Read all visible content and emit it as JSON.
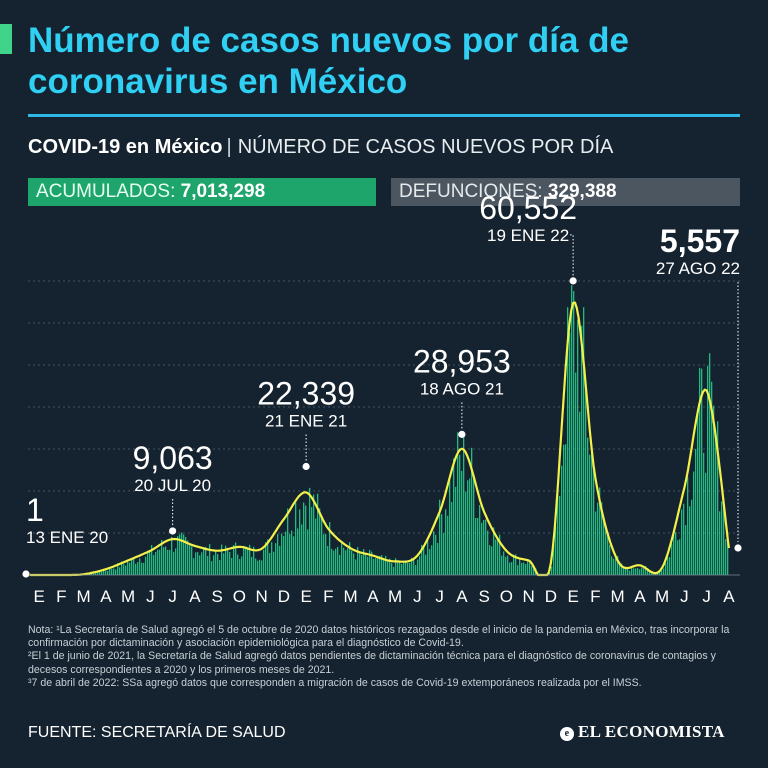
{
  "header": {
    "title": "Número de casos nuevos por día de coronavirus en México",
    "subtitle_bold": "COVID-19 en México",
    "subtitle_sep": "|",
    "subtitle_rest": "NÚMERO DE CASOS NUEVOS POR DÍA"
  },
  "stats": {
    "cumulative_label": "ACUMULADOS:",
    "cumulative_value": "7,013,298",
    "deaths_label": "DEFUNCIONES:",
    "deaths_value": "329,388"
  },
  "colors": {
    "background": "#152330",
    "title": "#2fd0f4",
    "bars": "#26d58f",
    "smooth_line": "#f3f04a",
    "cumulative_badge": "#1ea56b",
    "deaths_badge": "#4b5661"
  },
  "chart_data": {
    "type": "line",
    "x_ticks": [
      "E",
      "F",
      "M",
      "A",
      "M",
      "J",
      "J",
      "A",
      "S",
      "O",
      "N",
      "D",
      "E",
      "F",
      "M",
      "A",
      "M",
      "J",
      "J",
      "A",
      "S",
      "O",
      "N",
      "D",
      "E",
      "F",
      "M",
      "A",
      "M",
      "J",
      "J",
      "A"
    ],
    "ylim": [
      0,
      70000
    ],
    "grid": true,
    "smoothed_monthly_average": [
      {
        "x": "ENE 20",
        "y": 1
      },
      {
        "x": "FEB 20",
        "y": 3
      },
      {
        "x": "MAR 20",
        "y": 150
      },
      {
        "x": "ABR 20",
        "y": 1200
      },
      {
        "x": "MAY 20",
        "y": 3000
      },
      {
        "x": "JUN 20",
        "y": 5000
      },
      {
        "x": "JUL 20",
        "y": 7400
      },
      {
        "x": "AGO 20",
        "y": 6000
      },
      {
        "x": "SEP 20",
        "y": 5000
      },
      {
        "x": "OCT 20",
        "y": 5800
      },
      {
        "x": "NOV 20",
        "y": 5400
      },
      {
        "x": "DIC 20",
        "y": 11500
      },
      {
        "x": "ENE 21",
        "y": 17000
      },
      {
        "x": "FEB 21",
        "y": 9500
      },
      {
        "x": "MAR 21",
        "y": 5500
      },
      {
        "x": "ABR 21",
        "y": 4000
      },
      {
        "x": "MAY 21",
        "y": 2800
      },
      {
        "x": "JUN 21",
        "y": 4000
      },
      {
        "x": "JUL 21",
        "y": 13000
      },
      {
        "x": "AGO 21",
        "y": 26000
      },
      {
        "x": "SEP 21",
        "y": 13000
      },
      {
        "x": "OCT 21",
        "y": 5000
      },
      {
        "x": "NOV 21",
        "y": 3000
      },
      {
        "x": "DIC 21",
        "y": 2500
      },
      {
        "x": "ENE 22",
        "y": 56000
      },
      {
        "x": "FEB 22",
        "y": 20000
      },
      {
        "x": "MAR 22",
        "y": 3000
      },
      {
        "x": "ABR 22",
        "y": 2000
      },
      {
        "x": "MAY 22",
        "y": 1500
      },
      {
        "x": "JUN 22",
        "y": 18000
      },
      {
        "x": "JUL 22",
        "y": 38000
      },
      {
        "x": "AGO 22",
        "y": 5557
      }
    ],
    "annotations": [
      {
        "value": "1",
        "date": "13 ENE 20",
        "x": "ENE 20",
        "y": 1
      },
      {
        "value": "9,063",
        "date": "20 JUL 20",
        "x": "JUL 20",
        "y": 9063
      },
      {
        "value": "22,339",
        "date": "21 ENE 21",
        "x": "ENE 21",
        "y": 22339
      },
      {
        "value": "28,953",
        "date": "18 AGO 21",
        "x": "AGO 21",
        "y": 28953
      },
      {
        "value": "60,552",
        "date": "19 ENE 22",
        "x": "ENE 22",
        "y": 60552
      },
      {
        "value": "5,557",
        "date": "27 AGO 22",
        "x": "AGO 22",
        "y": 5557
      }
    ]
  },
  "notes": {
    "note1": "Nota: ¹La Secretaría de Salud agregó el 5 de octubre de 2020 datos históricos rezagados desde el inicio de la pandemia en México, tras incorporar la confirmación por dictaminación y asociación epidemiológica para el diagnóstico de Covid-19.",
    "note2": "²El 1 de junio de 2021, la Secretaría de Salud agregó datos pendientes de dictaminación técnica para el diagnóstico de coronavirus de contagios y decesos correspondientes a 2020 y los primeros meses de 2021.",
    "note3": "³7 de abril de 2022: SSa agregó datos que corresponden a migración de casos de Covid-19 extemporáneos realizada por el IMSS."
  },
  "footer": {
    "source": "FUENTE: SECRETARÍA DE SALUD",
    "logo_text": "EL ECONOMISTA"
  }
}
